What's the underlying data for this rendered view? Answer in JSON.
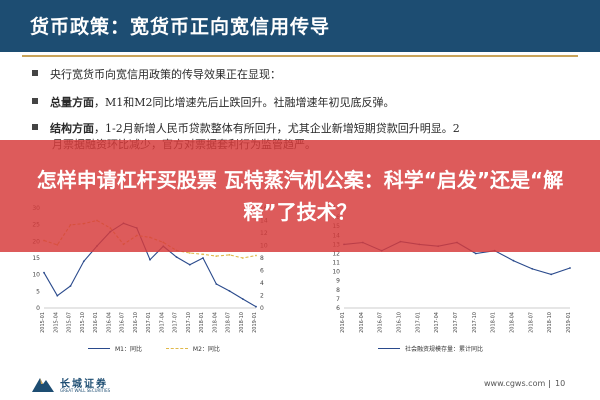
{
  "header": {
    "title": "货币政策：宽货币正向宽信用传导"
  },
  "bullets": [
    {
      "lead": "",
      "text": "央行宽货币向宽信用政策的传导效果正在显现："
    },
    {
      "lead": "总量方面",
      "text": "，M1和M2同比增速先后止跌回升。社融增速年初见底反弹。"
    },
    {
      "lead": "结构方面",
      "text": "，1-2月新增人民币贷款整体有所回升，尤其企业新增短期贷款回升明显。2"
    }
  ],
  "bullet_cont": "月票据融资环比减少，官方对票据套利行为监管趋严。",
  "overlay": {
    "headline": "怎样申请杠杆买股票 瓦特蒸汽机公案：科学“启发”还是“解释”了技术？"
  },
  "legend_left": {
    "m1": "M1：同比",
    "m2": "M2：同比"
  },
  "legend_right": {
    "s1": "社会融资规模存量：累计同比"
  },
  "footer": {
    "logo_text": "长城证券",
    "logo_sub": "GREAT WALL SECURITIES",
    "site": "www.cgws.com",
    "page": "10"
  },
  "colors": {
    "header_bg": "#1d4d72",
    "rule": "#c9a45a",
    "m1": "#2a4a8c",
    "m2": "#e0b94a",
    "tsf": "#2a4a8c",
    "overlay": "#d63c3c"
  },
  "chart_data": [
    {
      "type": "line",
      "title": "",
      "x": [
        "2015-01",
        "2015-04",
        "2015-07",
        "2015-10",
        "2016-01",
        "2016-04",
        "2016-07",
        "2016-10",
        "2017-01",
        "2017-04",
        "2017-07",
        "2017-10",
        "2018-01",
        "2018-04",
        "2018-07",
        "2018-10",
        "2019-01"
      ],
      "series": [
        {
          "name": "M1：同比",
          "axis": "left",
          "values": [
            10.6,
            3.7,
            6.6,
            14.0,
            18.6,
            22.9,
            25.4,
            24.0,
            14.5,
            18.5,
            15.3,
            13.0,
            15.0,
            7.2,
            5.1,
            2.7,
            0.4
          ]
        },
        {
          "name": "M2：同比",
          "axis": "right",
          "values": [
            10.8,
            10.1,
            13.3,
            13.5,
            14.0,
            12.8,
            10.2,
            11.6,
            11.3,
            10.5,
            9.2,
            8.8,
            8.6,
            8.3,
            8.5,
            8.0,
            8.4
          ]
        }
      ],
      "y_left": {
        "ticks": [
          "0",
          "5",
          "10",
          "15",
          "20",
          "25",
          "30"
        ],
        "lim": [
          0,
          30
        ]
      },
      "y_right": {
        "ticks": [
          "0",
          "2",
          "4",
          "6",
          "8",
          "10",
          "12",
          "14",
          "16"
        ],
        "lim": [
          0,
          16
        ]
      }
    },
    {
      "type": "line",
      "title": "",
      "x": [
        "2016-01",
        "2016-04",
        "2016-07",
        "2016-10",
        "2017-01",
        "2017-04",
        "2017-07",
        "2017-10",
        "2018-01",
        "2018-04",
        "2018-07",
        "2018-10",
        "2019-01"
      ],
      "series": [
        {
          "name": "社会融资规模存量：累计同比",
          "axis": "left",
          "values": [
            13.0,
            13.2,
            12.3,
            13.3,
            13.0,
            12.8,
            13.2,
            12.0,
            12.3,
            11.2,
            10.3,
            9.7,
            10.4
          ]
        }
      ],
      "y_left": {
        "ticks": [
          "6",
          "7",
          "8",
          "9",
          "10",
          "11",
          "12",
          "13",
          "14",
          "15",
          "16",
          "17"
        ],
        "lim": [
          6,
          17
        ]
      }
    }
  ]
}
